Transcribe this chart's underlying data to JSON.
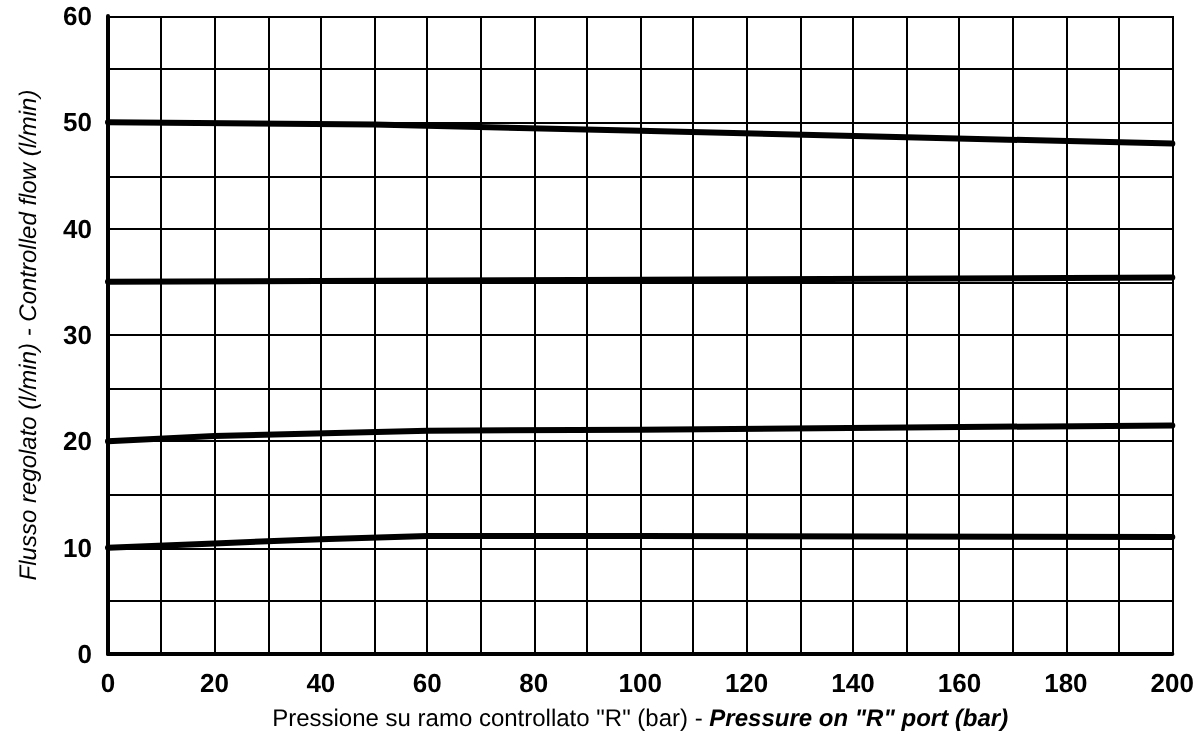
{
  "chart_data": {
    "type": "line",
    "xlabel": "Pressione su ramo controllato \"R\" (bar) - Pressure on \"R\" port (bar)",
    "ylabel": "Flusso regolato (l/min) - Controlled flow (l/min)",
    "xlim": [
      0,
      200
    ],
    "xticks": [
      0,
      20,
      40,
      60,
      80,
      100,
      120,
      140,
      160,
      180,
      200
    ],
    "ylim": [
      0,
      60
    ],
    "yticks": [
      0,
      10,
      20,
      30,
      40,
      50,
      60
    ],
    "grid": true,
    "marker": "none",
    "line_style": "solid",
    "series": [
      {
        "color": "#000000",
        "x": [
          0,
          50,
          100,
          150,
          200
        ],
        "values": [
          50,
          49.8,
          49.2,
          48.6,
          48
        ]
      },
      {
        "color": "#000000",
        "x": [
          0,
          100,
          200
        ],
        "values": [
          35,
          35.2,
          35.4
        ]
      },
      {
        "color": "#000000",
        "x": [
          0,
          20,
          60,
          100,
          150,
          200
        ],
        "values": [
          20,
          20.5,
          21,
          21.1,
          21.3,
          21.5
        ]
      },
      {
        "color": "#000000",
        "x": [
          0,
          20,
          40,
          60,
          100,
          200
        ],
        "values": [
          10,
          10.4,
          10.8,
          11.1,
          11.1,
          11
        ]
      }
    ]
  }
}
